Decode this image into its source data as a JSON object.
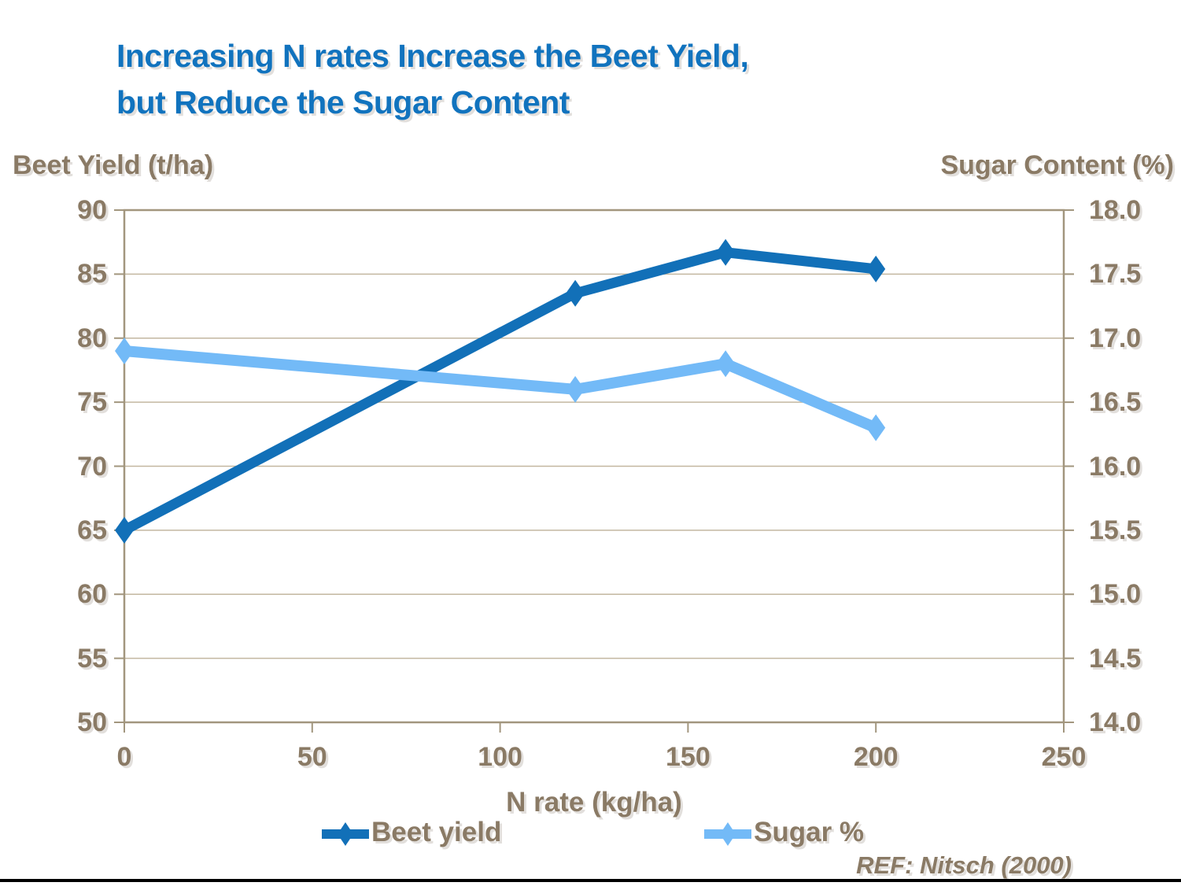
{
  "title": {
    "line1": "Increasing N rates Increase the Beet Yield,",
    "line2": "but Reduce the Sugar Content"
  },
  "axes": {
    "left_title": "Beet Yield (t/ha)",
    "right_title": "Sugar Content (%)",
    "x_title": "N rate (kg/ha)",
    "left_tick_labels": [
      "90",
      "85",
      "80",
      "75",
      "70",
      "65",
      "60",
      "55",
      "50"
    ],
    "right_tick_labels": [
      "18.0",
      "17.5",
      "17.0",
      "16.5",
      "16.0",
      "15.5",
      "15.0",
      "14.5",
      "14.0"
    ],
    "x_tick_labels": [
      "0",
      "50",
      "100",
      "150",
      "200",
      "250"
    ]
  },
  "legend": [
    {
      "label": "Beet yield",
      "color": "#1270B8"
    },
    {
      "label": "Sugar %",
      "color": "#73BAF7"
    }
  ],
  "ref_note": "REF: Nitsch (2000)",
  "colors": {
    "title_blue": "#1173BE",
    "beet_line": "#1270B8",
    "sugar_line": "#73BAF7",
    "label_brown": "#8A7A65",
    "gridline": "#C3B7A0",
    "axis_border": "#A2967E",
    "bottom_bar": "#000000"
  },
  "chart_data": {
    "type": "line",
    "x": [
      0,
      120,
      160,
      200
    ],
    "series": [
      {
        "name": "Beet yield",
        "axis": "left",
        "color": "#1270B8",
        "marker": "diamond",
        "values": [
          65,
          83.5,
          86.7,
          85.4
        ]
      },
      {
        "name": "Sugar %",
        "axis": "right",
        "color": "#73BAF7",
        "marker": "diamond",
        "values": [
          16.9,
          16.6,
          16.8,
          16.3
        ]
      }
    ],
    "title": "Increasing N rates Increase the Beet Yield, but Reduce the Sugar Content",
    "xlabel": "N rate (kg/ha)",
    "ylabel_left": "Beet Yield (t/ha)",
    "ylabel_right": "Sugar Content (%)",
    "xlim": [
      0,
      250
    ],
    "ylim_left": [
      50,
      90
    ],
    "ylim_right": [
      14.0,
      18.0
    ],
    "x_tick_step": 50,
    "y_left_tick_step": 5,
    "y_right_tick_step": 0.5,
    "grid": "horizontal",
    "legend_position": "bottom"
  }
}
